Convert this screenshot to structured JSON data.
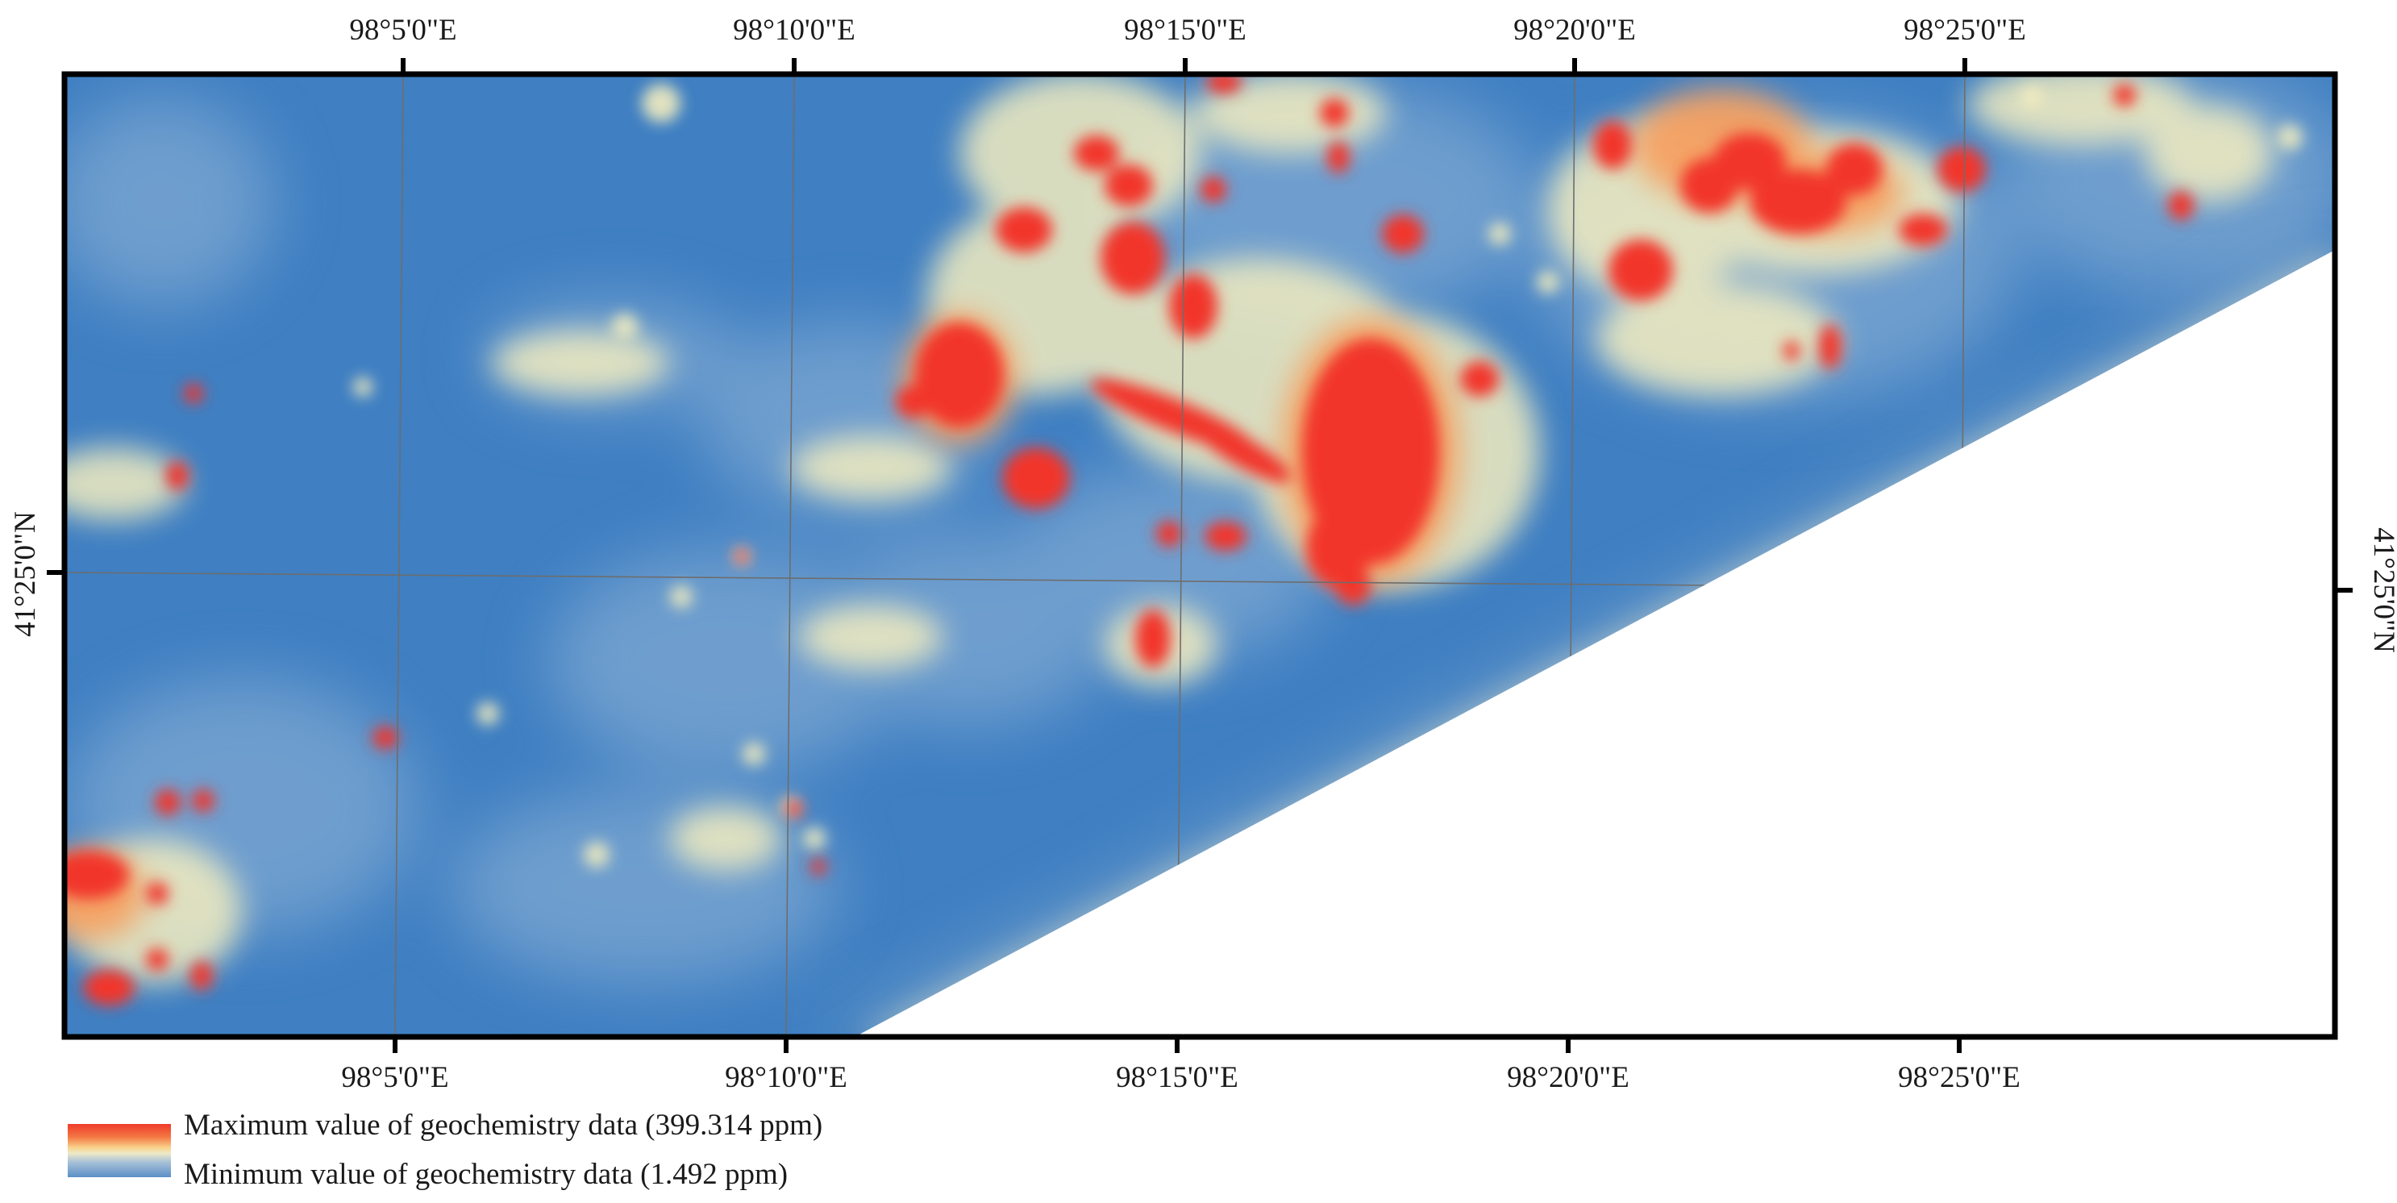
{
  "map": {
    "lon_ticks": [
      "98°5'0\"E",
      "98°10'0\"E",
      "98°15'0\"E",
      "98°20'0\"E",
      "98°25'0\"E"
    ],
    "lat_tick": "41°25'0\"N"
  },
  "legend": {
    "max_label": "Maximum value of geochemistry data (399.314 ppm)",
    "min_label": "Minimum value of geochemistry data (1.492 ppm)"
  },
  "colors": {
    "low": "#3f7fc2",
    "mid": "#f3edbf",
    "high": "#f2352a",
    "frame": "#000000",
    "grid": "#6d6d6d"
  }
}
